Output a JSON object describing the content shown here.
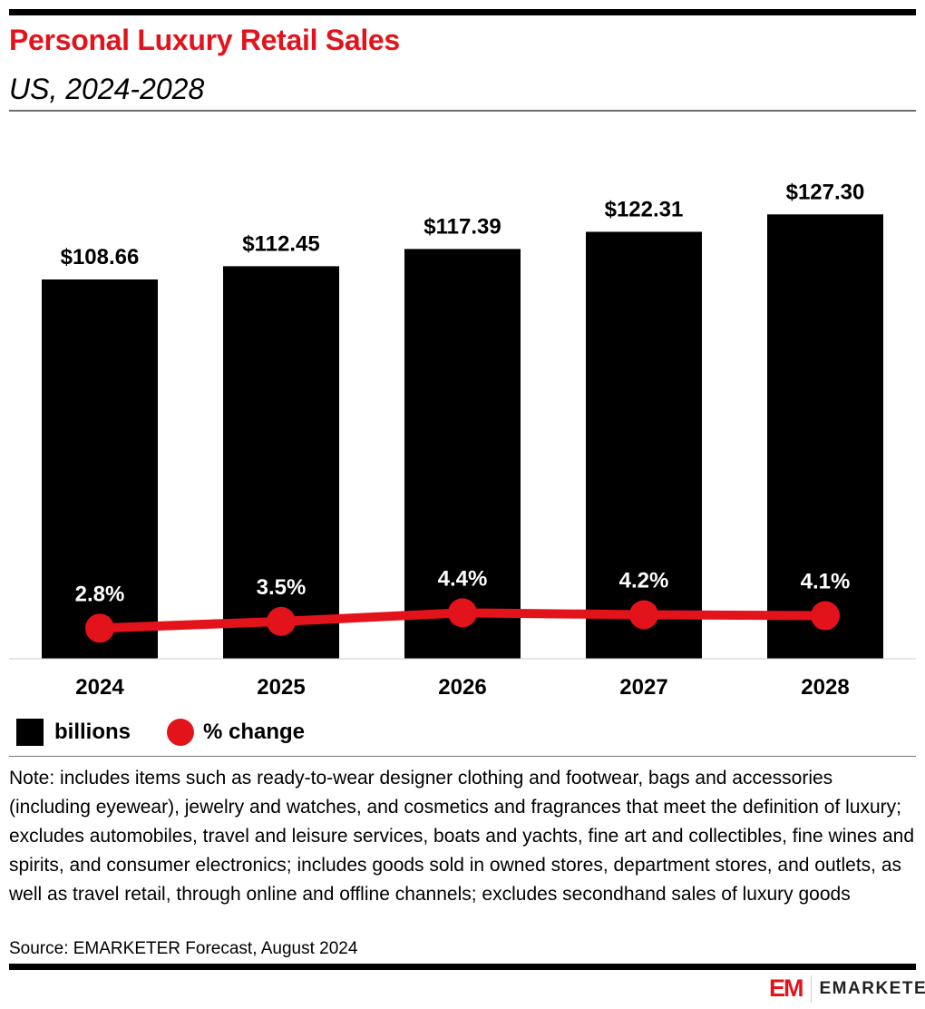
{
  "header": {
    "title": "Personal Luxury Retail Sales",
    "subtitle": "US, 2024-2028"
  },
  "chart_data": {
    "type": "bar",
    "categories": [
      "2024",
      "2025",
      "2026",
      "2027",
      "2028"
    ],
    "series": [
      {
        "name": "billions",
        "type": "bar",
        "values": [
          108.66,
          112.45,
          117.39,
          122.31,
          127.3
        ],
        "labels": [
          "$108.66",
          "$112.45",
          "$117.39",
          "$122.31",
          "$127.30"
        ],
        "color": "#000000"
      },
      {
        "name": "% change",
        "type": "line",
        "values": [
          2.8,
          3.5,
          4.4,
          4.2,
          4.1
        ],
        "labels": [
          "2.8%",
          "3.5%",
          "4.4%",
          "4.2%",
          "4.1%"
        ],
        "color": "#e3131b"
      }
    ],
    "legend_position": "bottom-left",
    "grid": false
  },
  "legend": {
    "bar": "billions",
    "line": "% change"
  },
  "note": "Note: includes items such as ready-to-wear designer clothing and footwear, bags and accessories (including eyewear), jewelry and watches, and cosmetics and fragrances that meet the definition of luxury; excludes automobiles, travel and leisure services, boats and yachts, fine art and collectibles, fine wines and spirits, and consumer electronics; includes goods sold in owned stores, department stores, and outlets, as well as travel retail, through online and offline channels; excludes secondhand sales of luxury goods",
  "source": "Source: EMARKETER Forecast, August 2024",
  "logo": {
    "mark": "EM",
    "text": "EMARKETER"
  }
}
